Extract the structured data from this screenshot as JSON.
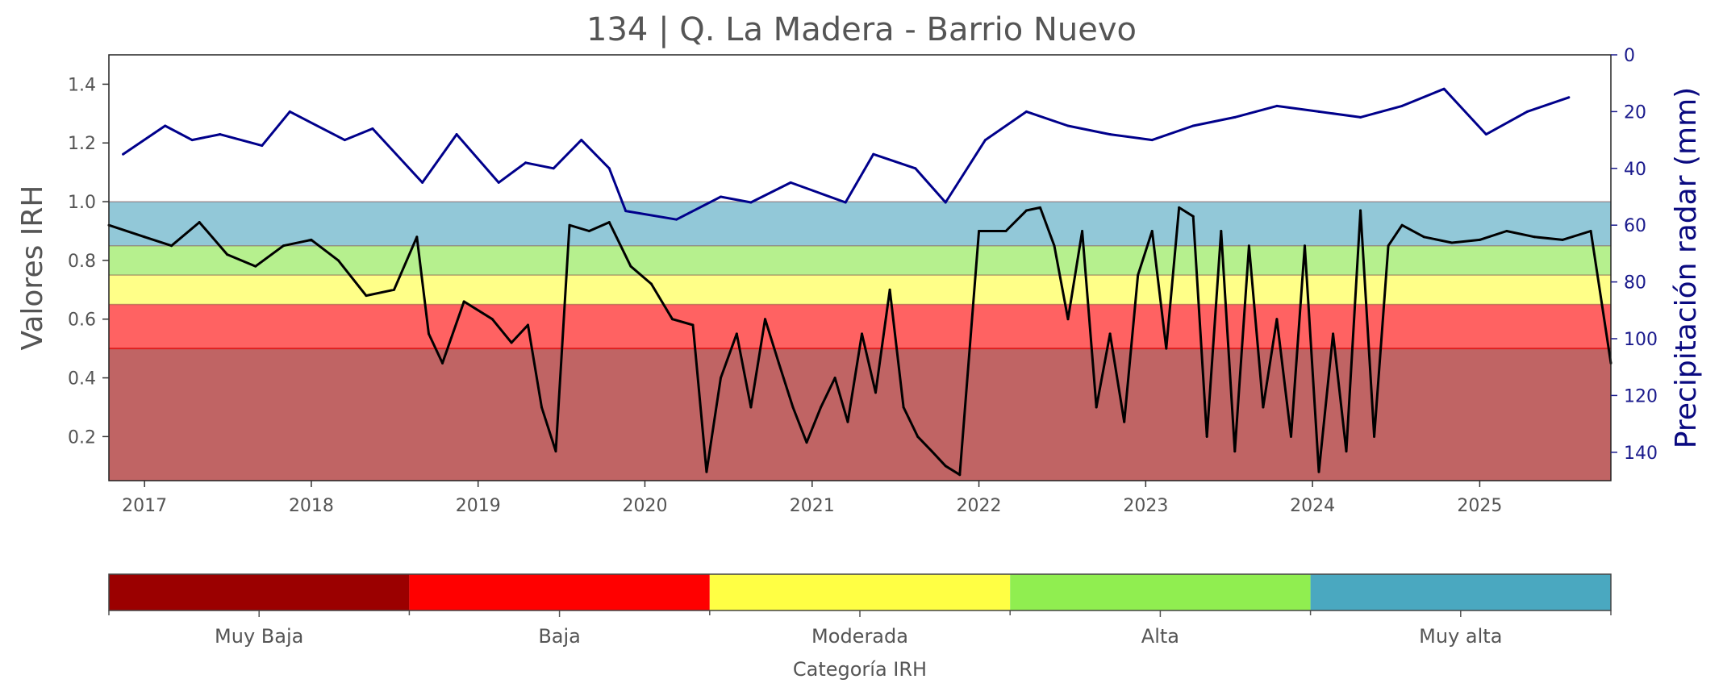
{
  "chart_data": {
    "type": "line",
    "title": "134 | Q. La Madera - Barrio Nuevo",
    "ylabel": "Valores IRH",
    "ylabel_right": "Precipitación radar (mm)",
    "xlim": [
      "2016-10-15",
      "2025-10-15"
    ],
    "ylim": [
      0.05,
      1.5
    ],
    "ylim_right": [
      150,
      0
    ],
    "x_ticks": [
      "2017",
      "2018",
      "2019",
      "2020",
      "2021",
      "2022",
      "2023",
      "2024",
      "2025"
    ],
    "y_ticks": [
      "0.2",
      "0.4",
      "0.6",
      "0.8",
      "1.0",
      "1.2",
      "1.4"
    ],
    "y_ticks_right": [
      "0",
      "20",
      "40",
      "60",
      "80",
      "100",
      "120",
      "140"
    ],
    "bands": [
      {
        "from": 0.05,
        "to": 0.5,
        "color": "#c06464"
      },
      {
        "from": 0.5,
        "to": 0.65,
        "color": "#ff6262"
      },
      {
        "from": 0.65,
        "to": 0.75,
        "color": "#ffff88"
      },
      {
        "from": 0.75,
        "to": 0.85,
        "color": "#b6f08e"
      },
      {
        "from": 0.85,
        "to": 1.0,
        "color": "#92c8d8"
      }
    ],
    "series": [
      {
        "axis": "left",
        "color": "#000000",
        "x": [
          "2016-10-15",
          "2017-01-01",
          "2017-03-01",
          "2017-05-01",
          "2017-07-01",
          "2017-09-01",
          "2017-11-01",
          "2018-01-01",
          "2018-03-01",
          "2018-05-01",
          "2018-07-01",
          "2018-08-20",
          "2018-09-15",
          "2018-10-15",
          "2018-12-01",
          "2019-02-01",
          "2019-03-15",
          "2019-04-20",
          "2019-05-20",
          "2019-06-20",
          "2019-07-20",
          "2019-09-01",
          "2019-10-15",
          "2019-12-01",
          "2020-01-15",
          "2020-03-01",
          "2020-04-15",
          "2020-05-15",
          "2020-06-15",
          "2020-07-20",
          "2020-08-20",
          "2020-09-20",
          "2020-10-20",
          "2020-11-20",
          "2020-12-20",
          "2021-01-20",
          "2021-02-20",
          "2021-03-20",
          "2021-04-20",
          "2021-05-20",
          "2021-06-20",
          "2021-07-20",
          "2021-08-20",
          "2021-09-20",
          "2021-10-20",
          "2021-11-20",
          "2022-01-01",
          "2022-03-01",
          "2022-04-15",
          "2022-05-15",
          "2022-06-15",
          "2022-07-15",
          "2022-08-15",
          "2022-09-15",
          "2022-10-15",
          "2022-11-15",
          "2022-12-15",
          "2023-01-15",
          "2023-02-15",
          "2023-03-15",
          "2023-04-15",
          "2023-05-15",
          "2023-06-15",
          "2023-07-15",
          "2023-08-15",
          "2023-09-15",
          "2023-10-15",
          "2023-11-15",
          "2023-12-15",
          "2024-01-15",
          "2024-02-15",
          "2024-03-15",
          "2024-04-15",
          "2024-05-15",
          "2024-06-15",
          "2024-07-15",
          "2024-09-01",
          "2024-11-01",
          "2025-01-01",
          "2025-03-01",
          "2025-05-01",
          "2025-07-01",
          "2025-09-01",
          "2025-10-15"
        ],
        "values": [
          0.92,
          0.88,
          0.85,
          0.93,
          0.82,
          0.78,
          0.85,
          0.87,
          0.8,
          0.68,
          0.7,
          0.88,
          0.55,
          0.45,
          0.66,
          0.6,
          0.52,
          0.58,
          0.3,
          0.15,
          0.92,
          0.9,
          0.93,
          0.78,
          0.72,
          0.6,
          0.58,
          0.08,
          0.4,
          0.55,
          0.3,
          0.6,
          0.45,
          0.3,
          0.18,
          0.3,
          0.4,
          0.25,
          0.55,
          0.35,
          0.7,
          0.3,
          0.2,
          0.15,
          0.1,
          0.07,
          0.9,
          0.9,
          0.97,
          0.98,
          0.85,
          0.6,
          0.9,
          0.3,
          0.55,
          0.25,
          0.75,
          0.9,
          0.5,
          0.98,
          0.95,
          0.2,
          0.9,
          0.15,
          0.85,
          0.3,
          0.6,
          0.2,
          0.85,
          0.08,
          0.55,
          0.15,
          0.97,
          0.2,
          0.85,
          0.92,
          0.88,
          0.86,
          0.87,
          0.9,
          0.88,
          0.87,
          0.9,
          0.45
        ]
      },
      {
        "axis": "right",
        "color": "#00008b",
        "x": [
          "2016-11-15",
          "2017-02-15",
          "2017-04-15",
          "2017-06-15",
          "2017-09-15",
          "2017-11-15",
          "2018-03-15",
          "2018-05-15",
          "2018-09-01",
          "2018-11-15",
          "2019-02-15",
          "2019-04-15",
          "2019-06-15",
          "2019-08-15",
          "2019-10-15",
          "2019-11-20",
          "2020-03-10",
          "2020-06-15",
          "2020-08-20",
          "2020-11-15",
          "2021-03-15",
          "2021-05-15",
          "2021-08-15",
          "2021-10-20",
          "2022-01-15",
          "2022-04-15",
          "2022-07-15",
          "2022-10-15",
          "2023-01-15",
          "2023-04-15",
          "2023-07-15",
          "2023-10-15",
          "2024-01-15",
          "2024-04-15",
          "2024-07-15",
          "2024-10-15",
          "2025-01-15",
          "2025-04-15",
          "2025-07-15"
        ],
        "values": [
          35,
          25,
          30,
          28,
          32,
          20,
          30,
          26,
          45,
          28,
          45,
          38,
          40,
          30,
          40,
          55,
          58,
          50,
          52,
          45,
          52,
          35,
          40,
          52,
          30,
          20,
          25,
          28,
          30,
          25,
          22,
          18,
          20,
          22,
          18,
          12,
          28,
          20,
          15
        ]
      }
    ],
    "colorbar": {
      "title": "Categoría IRH",
      "categories": [
        "Muy Baja",
        "Baja",
        "Moderada",
        "Alta",
        "Muy alta"
      ],
      "colors": [
        "#9b0000",
        "#ff0000",
        "#ffff44",
        "#90ee50",
        "#4aa8c0"
      ]
    }
  }
}
